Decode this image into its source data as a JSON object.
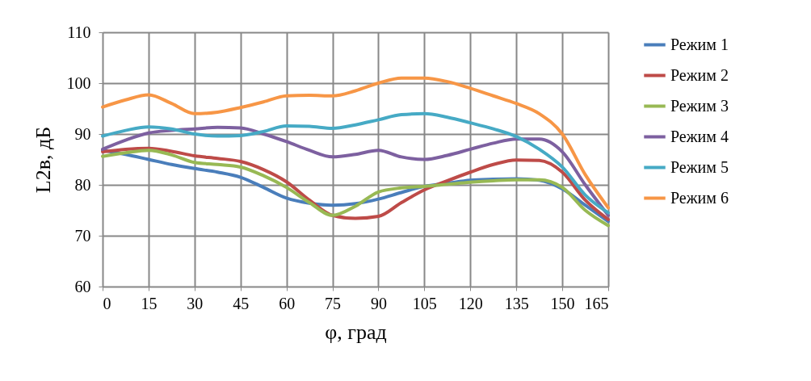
{
  "chart_data": {
    "type": "line",
    "xlabel": "φ, град",
    "ylabel": "L2в, дБ",
    "x": [
      0,
      7.5,
      15,
      22.5,
      30,
      37.5,
      45,
      52.5,
      60,
      67.5,
      75,
      82.5,
      90,
      97.5,
      105,
      112.5,
      120,
      127.5,
      135,
      142.5,
      150,
      157.5,
      165
    ],
    "xlim": [
      0,
      165
    ],
    "xticks": [
      0,
      15,
      30,
      45,
      60,
      75,
      90,
      105,
      120,
      135,
      150,
      165
    ],
    "ylim": [
      60,
      110
    ],
    "yticks": [
      60,
      70,
      80,
      90,
      100,
      110
    ],
    "grid": true,
    "legend": "right",
    "marker": "none",
    "line_style": "solid",
    "series": [
      {
        "name": "Режим 1",
        "color": "#4a7ebb",
        "values": [
          86.8,
          86,
          85,
          84,
          83.2,
          82.5,
          81.5,
          79.5,
          77.4,
          76.4,
          76,
          76.3,
          77.2,
          78.5,
          79.7,
          80.3,
          80.9,
          81.1,
          81.2,
          80.9,
          79.2,
          76,
          72.8
        ]
      },
      {
        "name": "Режим 2",
        "color": "#be4b48",
        "values": [
          86.5,
          87,
          87.2,
          86.6,
          85.7,
          85.2,
          84.6,
          83,
          80.6,
          77,
          74,
          73.4,
          73.8,
          76.5,
          79,
          80.8,
          82.5,
          84,
          84.9,
          84.8,
          82.5,
          77,
          73.2
        ]
      },
      {
        "name": "Режим 3",
        "color": "#98b954",
        "values": [
          85.6,
          86.3,
          86.8,
          85.9,
          84.4,
          84,
          83.5,
          81.8,
          79.5,
          76.5,
          74,
          75.8,
          78.6,
          79.4,
          79.7,
          80.1,
          80.5,
          80.8,
          81,
          81,
          79.5,
          75,
          72
        ]
      },
      {
        "name": "Режим 4",
        "color": "#7d60a0",
        "values": [
          87,
          88.8,
          90.2,
          90.7,
          91,
          91.3,
          91.2,
          90,
          88.5,
          86.8,
          85.5,
          86,
          86.8,
          85.5,
          85,
          85.8,
          87,
          88.2,
          89,
          89,
          86.5,
          80,
          74
        ]
      },
      {
        "name": "Режим 5",
        "color": "#46aac5",
        "values": [
          89.6,
          90.7,
          91.4,
          91,
          90,
          89.6,
          89.7,
          90.5,
          91.6,
          91.5,
          91.1,
          91.8,
          92.8,
          93.8,
          94,
          93.3,
          92.2,
          91,
          89.5,
          87,
          83.5,
          78,
          74.5
        ]
      },
      {
        "name": "Режим 6",
        "color": "#f79646",
        "values": [
          95.3,
          96.7,
          97.7,
          96,
          94,
          94.3,
          95.2,
          96.3,
          97.5,
          97.6,
          97.5,
          98.5,
          100,
          101,
          101,
          100.3,
          99,
          97.5,
          96,
          94,
          90,
          82,
          75.5
        ]
      }
    ]
  }
}
